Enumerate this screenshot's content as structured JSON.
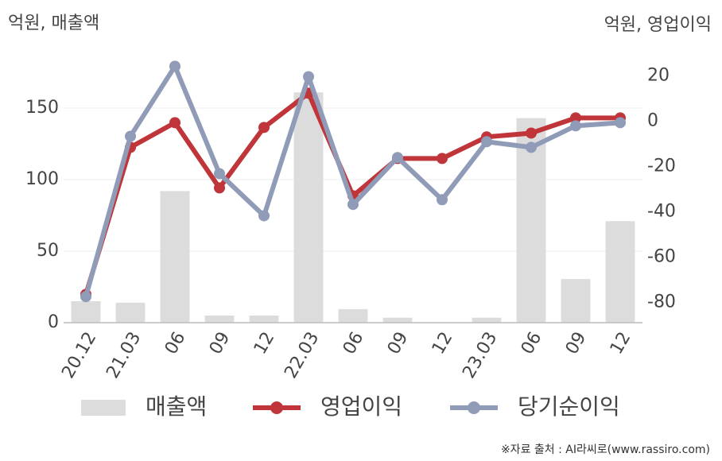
{
  "chart_data": {
    "type": "bar-line",
    "y_title": "억원, 매출액",
    "y2_title": "억원, 영업이익",
    "source": "※자료 출처 : AI라씨로(www.rassiro.com)",
    "categories": [
      "20.12",
      "21.03",
      "06",
      "09",
      "12",
      "22.03",
      "06",
      "09",
      "12",
      "23.03",
      "06",
      "09",
      "12"
    ],
    "ylim": [
      0,
      190
    ],
    "yticks": [
      0,
      50,
      100,
      150
    ],
    "y2lim": [
      -89,
      31
    ],
    "y2ticks": [
      -80,
      -60,
      -40,
      -20,
      0,
      20
    ],
    "grid": true,
    "series": [
      {
        "name": "매출액",
        "type": "bar",
        "color": "#dcdcdc",
        "values": [
          15,
          14,
          92,
          5,
          5,
          161,
          9.5,
          3.5,
          0,
          3.5,
          143,
          30.5,
          71
        ]
      },
      {
        "name": "영업이익",
        "type": "line",
        "axis": "y2",
        "color": "#c0353a",
        "values": [
          -76.5,
          -11.6,
          -0.7,
          -29.5,
          -2.8,
          12.3,
          -33,
          -16.5,
          -16.5,
          -7,
          -5.3,
          1.4,
          1.4
        ]
      },
      {
        "name": "당기순이익",
        "type": "line",
        "axis": "y2",
        "color": "#8f9bb7",
        "values": [
          -77.5,
          -6.7,
          24.2,
          -23.2,
          -41.8,
          19.6,
          -36.8,
          -16.1,
          -34.7,
          -9.1,
          -11.6,
          -2.1,
          -0.7
        ]
      }
    ]
  }
}
